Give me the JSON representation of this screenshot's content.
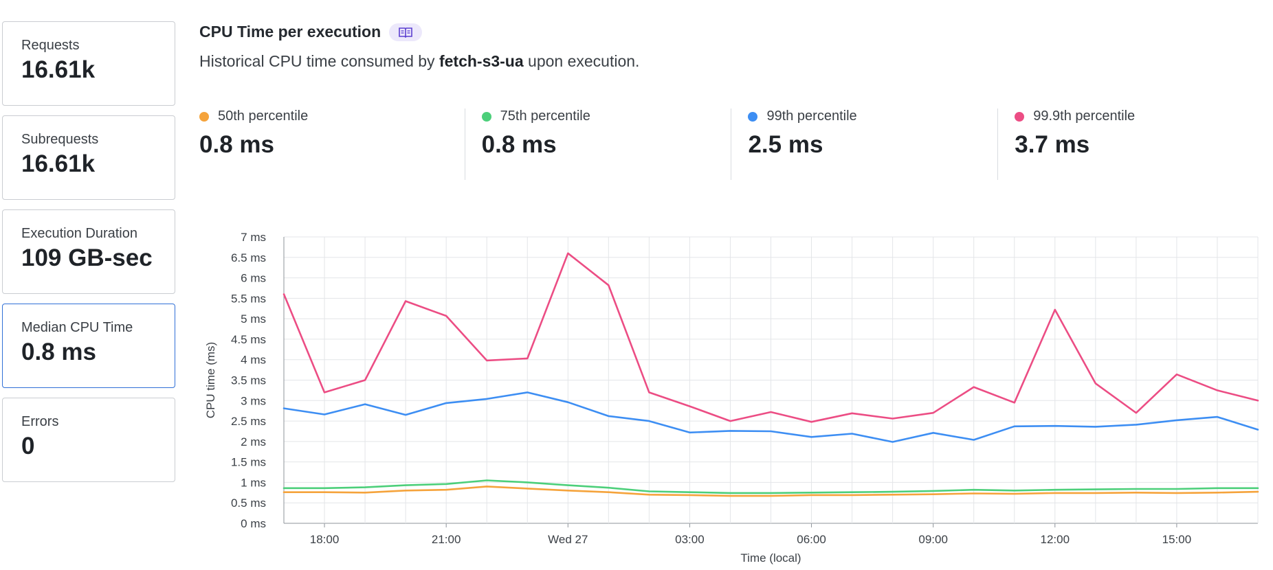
{
  "sidebar": {
    "cards": [
      {
        "label": "Requests",
        "value": "16.61k"
      },
      {
        "label": "Subrequests",
        "value": "16.61k"
      },
      {
        "label": "Execution Duration",
        "value": "109 GB-sec"
      },
      {
        "label": "Median CPU Time",
        "value": "0.8 ms",
        "selected": true
      },
      {
        "label": "Errors",
        "value": "0"
      }
    ]
  },
  "header": {
    "title": "CPU Time per execution",
    "badge_icon": "book-icon",
    "description_prefix": "Historical CPU time consumed by",
    "description_worker": "fetch-s3-ua",
    "description_suffix": "upon execution."
  },
  "stats": [
    {
      "label": "50th percentile",
      "value": "0.8 ms",
      "color": "#f5a33b"
    },
    {
      "label": "75th percentile",
      "value": "0.8 ms",
      "color": "#4ccf7a"
    },
    {
      "label": "99th percentile",
      "value": "2.5 ms",
      "color": "#3d8ef3"
    },
    {
      "label": "99.9th percentile",
      "value": "3.7 ms",
      "color": "#ec4d84"
    }
  ],
  "chart_data": {
    "type": "line",
    "title": "",
    "xlabel": "Time (local)",
    "ylabel": "CPU time (ms)",
    "ylim": [
      0,
      7
    ],
    "y_ticks": [
      0,
      0.5,
      1,
      1.5,
      2,
      2.5,
      3,
      3.5,
      4,
      4.5,
      5,
      5.5,
      6,
      6.5,
      7
    ],
    "y_tick_labels": [
      "0 ms",
      "0.5 ms",
      "1 ms",
      "1.5 ms",
      "2 ms",
      "2.5 ms",
      "3 ms",
      "3.5 ms",
      "4 ms",
      "4.5 ms",
      "5 ms",
      "5.5 ms",
      "6 ms",
      "6.5 ms",
      "7 ms"
    ],
    "x": [
      "17:00",
      "18:00",
      "19:00",
      "20:00",
      "21:00",
      "22:00",
      "23:00",
      "Wed 27 00:00",
      "01:00",
      "02:00",
      "03:00",
      "04:00",
      "05:00",
      "06:00",
      "07:00",
      "08:00",
      "09:00",
      "10:00",
      "11:00",
      "12:00",
      "13:00",
      "14:00",
      "15:00",
      "16:00",
      "17:00"
    ],
    "x_tick_labels": [
      "18:00",
      "21:00",
      "Wed 27",
      "03:00",
      "06:00",
      "09:00",
      "12:00",
      "15:00"
    ],
    "x_tick_positions": [
      1,
      4,
      7,
      10,
      13,
      16,
      19,
      22
    ],
    "grid": true,
    "legend": "none",
    "series": [
      {
        "name": "50th percentile",
        "color": "#f5a33b",
        "values": [
          0.76,
          0.76,
          0.75,
          0.8,
          0.82,
          0.9,
          0.85,
          0.8,
          0.76,
          0.7,
          0.69,
          0.67,
          0.67,
          0.69,
          0.69,
          0.7,
          0.71,
          0.73,
          0.72,
          0.74,
          0.74,
          0.75,
          0.74,
          0.75,
          0.77
        ]
      },
      {
        "name": "75th percentile",
        "color": "#4ccf7a",
        "values": [
          0.86,
          0.86,
          0.88,
          0.93,
          0.96,
          1.05,
          1.0,
          0.93,
          0.87,
          0.78,
          0.76,
          0.74,
          0.74,
          0.75,
          0.76,
          0.77,
          0.79,
          0.82,
          0.8,
          0.82,
          0.83,
          0.84,
          0.84,
          0.86,
          0.86
        ]
      },
      {
        "name": "99th percentile",
        "color": "#3d8ef3",
        "values": [
          2.81,
          2.66,
          2.91,
          2.65,
          2.94,
          3.04,
          3.2,
          2.96,
          2.62,
          2.5,
          2.22,
          2.26,
          2.25,
          2.11,
          2.19,
          1.99,
          2.21,
          2.04,
          2.37,
          2.38,
          2.36,
          2.41,
          2.52,
          2.6,
          2.29
        ]
      },
      {
        "name": "99.9th percentile",
        "color": "#ec4d84",
        "values": [
          5.6,
          3.2,
          3.5,
          5.43,
          5.07,
          3.98,
          4.03,
          6.6,
          5.82,
          3.2,
          2.86,
          2.5,
          2.72,
          2.48,
          2.69,
          2.56,
          2.7,
          3.33,
          2.95,
          5.22,
          3.42,
          2.7,
          3.64,
          3.25,
          3.0
        ]
      }
    ]
  }
}
